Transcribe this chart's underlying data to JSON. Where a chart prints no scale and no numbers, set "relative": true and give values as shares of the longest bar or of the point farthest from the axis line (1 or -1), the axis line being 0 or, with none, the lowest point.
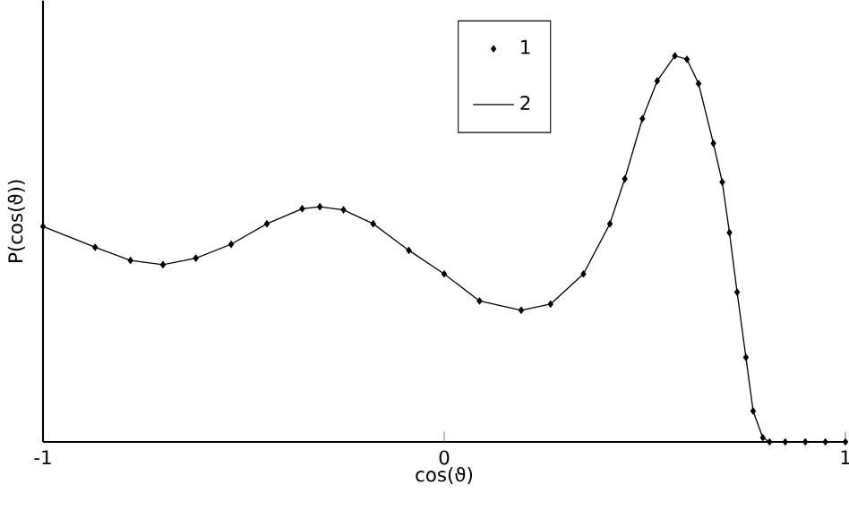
{
  "chart_data": {
    "type": "line",
    "relative": true,
    "xlabel": "cos(ϑ)",
    "ylabel": "P(cos(ϑ))",
    "xlim": [
      -1,
      1
    ],
    "xticks": [
      -1,
      0,
      1
    ],
    "legend": "top",
    "tick_labels": "x",
    "x": [
      -1,
      -0.87,
      -0.782,
      -0.701,
      -0.619,
      -0.531,
      -0.442,
      -0.354,
      -0.31,
      -0.251,
      -0.177,
      -0.088,
      0,
      0.088,
      0.192,
      0.265,
      0.347,
      0.413,
      0.45,
      0.494,
      0.531,
      0.575,
      0.605,
      0.634,
      0.671,
      0.693,
      0.711,
      0.73,
      0.752,
      0.77,
      0.794,
      0.811,
      0.85,
      0.9,
      0.95,
      1
    ],
    "series": [
      {
        "name": "1",
        "type": "scatter",
        "marker": "diamond",
        "color": "#000000",
        "values": [
          0.558,
          0.504,
          0.47,
          0.459,
          0.476,
          0.512,
          0.565,
          0.604,
          0.609,
          0.601,
          0.565,
          0.496,
          0.435,
          0.365,
          0.341,
          0.357,
          0.435,
          0.565,
          0.681,
          0.837,
          0.935,
          1,
          0.991,
          0.928,
          0.773,
          0.673,
          0.542,
          0.388,
          0.219,
          0.08,
          0.011,
          0,
          0,
          0,
          0,
          0
        ]
      },
      {
        "name": "2",
        "type": "line",
        "color": "#000000",
        "values": [
          0.558,
          0.504,
          0.47,
          0.459,
          0.476,
          0.512,
          0.565,
          0.604,
          0.609,
          0.601,
          0.565,
          0.496,
          0.435,
          0.365,
          0.341,
          0.357,
          0.435,
          0.565,
          0.681,
          0.837,
          0.935,
          1,
          0.991,
          0.928,
          0.773,
          0.673,
          0.542,
          0.388,
          0.219,
          0.08,
          0.011,
          0,
          0,
          0,
          0,
          0
        ]
      }
    ]
  }
}
